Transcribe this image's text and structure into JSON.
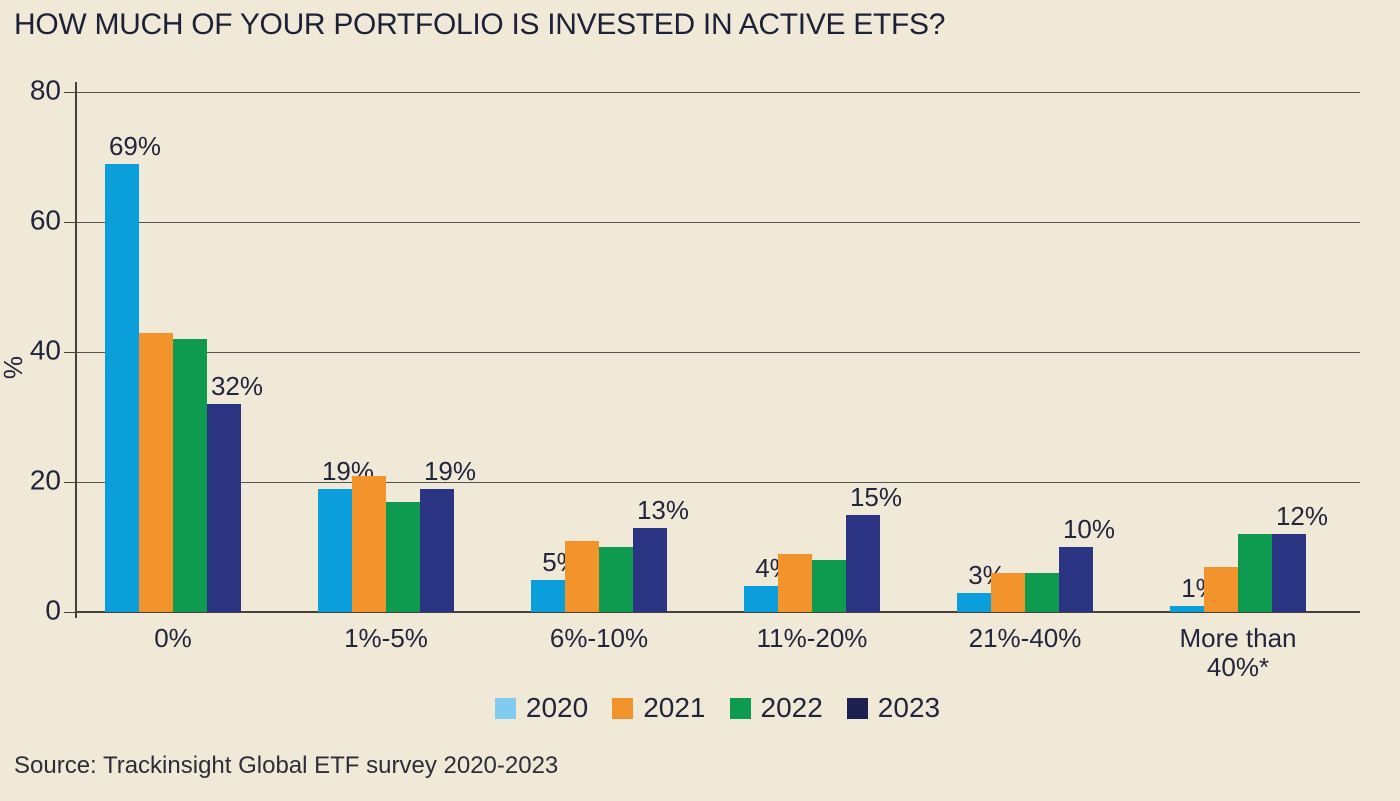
{
  "source_note": "Source: Trackinsight Global ETF survey 2020-2023",
  "colors": {
    "background": "#f1e9d8",
    "text": "#22253e",
    "grid": "#57544e",
    "axis": "#45423c",
    "bar_2020": "#0a9fdb",
    "bar_2021": "#f2932b",
    "bar_2022": "#0f9b4f",
    "bar_2023": "#2b3482",
    "legend_2020": "#82cbf0",
    "legend_2023": "#1d2150"
  },
  "chart_data": {
    "type": "bar",
    "title": "HOW MUCH OF YOUR PORTFOLIO IS INVESTED IN ACTIVE ETFS?",
    "xlabel": "",
    "ylabel": "%",
    "ylim": [
      0,
      80
    ],
    "yticks": [
      0,
      20,
      40,
      60,
      80
    ],
    "grid": true,
    "legend_position": "bottom",
    "categories": [
      "0%",
      "1%-5%",
      "6%-10%",
      "11%-20%",
      "21%-40%",
      "More than 40%*"
    ],
    "series": [
      {
        "name": "2020",
        "color": "#0a9fdb",
        "legend_color": "#82cbf0",
        "values": [
          69,
          19,
          5,
          4,
          3,
          1
        ],
        "data_labels": true
      },
      {
        "name": "2021",
        "color": "#f2932b",
        "legend_color": "#f2932b",
        "values": [
          43,
          21,
          11,
          9,
          6,
          7
        ],
        "data_labels": false
      },
      {
        "name": "2022",
        "color": "#0f9b4f",
        "legend_color": "#0f9b4f",
        "values": [
          42,
          17,
          10,
          8,
          6,
          12
        ],
        "data_labels": false
      },
      {
        "name": "2023",
        "color": "#2b3482",
        "legend_color": "#1d2150",
        "values": [
          32,
          19,
          13,
          15,
          10,
          12
        ],
        "data_labels": true
      }
    ],
    "data_label_suffix": "%"
  }
}
